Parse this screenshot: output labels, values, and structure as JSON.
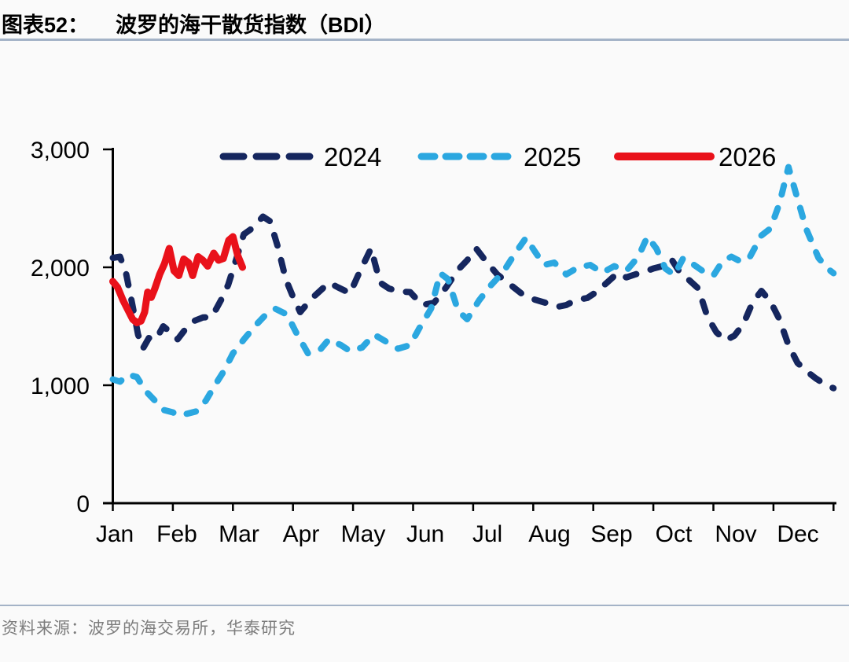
{
  "figure": {
    "label": "图表52：",
    "title": "波罗的海干散货指数（BDI）"
  },
  "source": {
    "text": "资料来源：波罗的海交易所，华泰研究"
  },
  "colors": {
    "navy": "#15265e",
    "light_blue": "#2ba7e0",
    "red": "#e9111a",
    "rule": "#a4b3c7",
    "axis": "#000000",
    "source_text": "#7d7d7d"
  },
  "chart_data": {
    "type": "line",
    "title": "波罗的海干散货指数（BDI）",
    "xlabel": "",
    "ylabel": "",
    "ylim": [
      0,
      3000
    ],
    "yticks": [
      0,
      1000,
      2000,
      3000
    ],
    "ytick_labels": [
      "0",
      "1,000",
      "2,000",
      "3,000"
    ],
    "months": [
      "Jan",
      "Feb",
      "Mar",
      "Apr",
      "May",
      "Jun",
      "Jul",
      "Aug",
      "Sep",
      "Oct",
      "Nov",
      "Dec"
    ],
    "grid": false,
    "legend_position": "top",
    "series": [
      {
        "name": "2024",
        "color": "#15265e",
        "width": 8,
        "dash": "14 19",
        "legend_dash": "26 16",
        "points": [
          [
            0,
            2080
          ],
          [
            0.12,
            2090
          ],
          [
            0.22,
            1950
          ],
          [
            0.32,
            1700
          ],
          [
            0.42,
            1430
          ],
          [
            0.5,
            1310
          ],
          [
            0.6,
            1400
          ],
          [
            0.72,
            1390
          ],
          [
            0.84,
            1500
          ],
          [
            0.96,
            1450
          ],
          [
            1.08,
            1390
          ],
          [
            1.2,
            1470
          ],
          [
            1.35,
            1545
          ],
          [
            1.5,
            1575
          ],
          [
            1.65,
            1580
          ],
          [
            1.8,
            1720
          ],
          [
            1.92,
            1850
          ],
          [
            2.05,
            2060
          ],
          [
            2.18,
            2280
          ],
          [
            2.32,
            2330
          ],
          [
            2.5,
            2430
          ],
          [
            2.62,
            2390
          ],
          [
            2.75,
            2170
          ],
          [
            2.88,
            1900
          ],
          [
            3,
            1750
          ],
          [
            3.12,
            1620
          ],
          [
            3.3,
            1730
          ],
          [
            3.45,
            1800
          ],
          [
            3.6,
            1870
          ],
          [
            3.75,
            1830
          ],
          [
            3.95,
            1780
          ],
          [
            4.1,
            1950
          ],
          [
            4.3,
            2160
          ],
          [
            4.45,
            1870
          ],
          [
            4.6,
            1820
          ],
          [
            4.78,
            1795
          ],
          [
            4.95,
            1790
          ],
          [
            5.15,
            1680
          ],
          [
            5.35,
            1700
          ],
          [
            5.55,
            1830
          ],
          [
            5.75,
            1980
          ],
          [
            5.9,
            2060
          ],
          [
            6.05,
            2160
          ],
          [
            6.2,
            2060
          ],
          [
            6.4,
            1940
          ],
          [
            6.6,
            1860
          ],
          [
            6.8,
            1780
          ],
          [
            7,
            1730
          ],
          [
            7.2,
            1700
          ],
          [
            7.4,
            1665
          ],
          [
            7.55,
            1680
          ],
          [
            7.7,
            1720
          ],
          [
            7.9,
            1740
          ],
          [
            8.05,
            1790
          ],
          [
            8.25,
            1880
          ],
          [
            8.4,
            1950
          ],
          [
            8.55,
            1915
          ],
          [
            8.7,
            1940
          ],
          [
            8.85,
            1960
          ],
          [
            9,
            1990
          ],
          [
            9.15,
            2010
          ],
          [
            9.3,
            2070
          ],
          [
            9.45,
            1950
          ],
          [
            9.6,
            1890
          ],
          [
            9.75,
            1820
          ],
          [
            9.9,
            1580
          ],
          [
            10.05,
            1450
          ],
          [
            10.2,
            1380
          ],
          [
            10.35,
            1420
          ],
          [
            10.5,
            1520
          ],
          [
            10.65,
            1700
          ],
          [
            10.8,
            1800
          ],
          [
            10.95,
            1710
          ],
          [
            11.1,
            1560
          ],
          [
            11.25,
            1340
          ],
          [
            11.4,
            1190
          ],
          [
            11.55,
            1120
          ],
          [
            11.7,
            1060
          ],
          [
            11.85,
            1010
          ],
          [
            12,
            975
          ]
        ]
      },
      {
        "name": "2025",
        "color": "#2ba7e0",
        "width": 8,
        "dash": "12 18",
        "legend_dash": "17 14",
        "points": [
          [
            0,
            1050
          ],
          [
            0.12,
            1030
          ],
          [
            0.25,
            1090
          ],
          [
            0.4,
            1070
          ],
          [
            0.55,
            950
          ],
          [
            0.7,
            870
          ],
          [
            0.85,
            790
          ],
          [
            1,
            770
          ],
          [
            1.1,
            745
          ],
          [
            1.25,
            760
          ],
          [
            1.4,
            780
          ],
          [
            1.55,
            870
          ],
          [
            1.7,
            1000
          ],
          [
            1.85,
            1120
          ],
          [
            2,
            1270
          ],
          [
            2.2,
            1400
          ],
          [
            2.4,
            1520
          ],
          [
            2.55,
            1600
          ],
          [
            2.7,
            1650
          ],
          [
            2.9,
            1600
          ],
          [
            3.05,
            1450
          ],
          [
            3.25,
            1270
          ],
          [
            3.45,
            1300
          ],
          [
            3.6,
            1390
          ],
          [
            3.8,
            1340
          ],
          [
            3.95,
            1290
          ],
          [
            4.15,
            1320
          ],
          [
            4.35,
            1430
          ],
          [
            4.55,
            1370
          ],
          [
            4.75,
            1310
          ],
          [
            4.95,
            1340
          ],
          [
            5.1,
            1480
          ],
          [
            5.3,
            1650
          ],
          [
            5.45,
            1950
          ],
          [
            5.58,
            1900
          ],
          [
            5.75,
            1630
          ],
          [
            5.9,
            1560
          ],
          [
            6.1,
            1720
          ],
          [
            6.3,
            1850
          ],
          [
            6.5,
            1960
          ],
          [
            6.7,
            2120
          ],
          [
            6.88,
            2250
          ],
          [
            7.02,
            2140
          ],
          [
            7.18,
            2020
          ],
          [
            7.35,
            2040
          ],
          [
            7.55,
            1940
          ],
          [
            7.75,
            2000
          ],
          [
            7.95,
            2020
          ],
          [
            8.15,
            1955
          ],
          [
            8.35,
            2010
          ],
          [
            8.55,
            1970
          ],
          [
            8.75,
            2090
          ],
          [
            8.9,
            2260
          ],
          [
            9.05,
            2160
          ],
          [
            9.2,
            1990
          ],
          [
            9.35,
            1935
          ],
          [
            9.5,
            2080
          ],
          [
            9.65,
            2030
          ],
          [
            9.82,
            1970
          ],
          [
            10,
            1930
          ],
          [
            10.15,
            2050
          ],
          [
            10.3,
            2090
          ],
          [
            10.45,
            2050
          ],
          [
            10.6,
            2080
          ],
          [
            10.8,
            2270
          ],
          [
            10.95,
            2330
          ],
          [
            11.1,
            2540
          ],
          [
            11.25,
            2850
          ],
          [
            11.4,
            2580
          ],
          [
            11.55,
            2320
          ],
          [
            11.75,
            2080
          ],
          [
            11.9,
            1990
          ],
          [
            12,
            1950
          ]
        ]
      },
      {
        "name": "2026",
        "color": "#e9111a",
        "width": 9,
        "dash": null,
        "legend_dash": null,
        "points": [
          [
            0,
            1880
          ],
          [
            0.08,
            1830
          ],
          [
            0.17,
            1720
          ],
          [
            0.25,
            1640
          ],
          [
            0.33,
            1560
          ],
          [
            0.4,
            1530
          ],
          [
            0.47,
            1545
          ],
          [
            0.53,
            1620
          ],
          [
            0.58,
            1790
          ],
          [
            0.64,
            1745
          ],
          [
            0.7,
            1820
          ],
          [
            0.78,
            1940
          ],
          [
            0.86,
            2030
          ],
          [
            0.94,
            2160
          ],
          [
            1.02,
            1970
          ],
          [
            1.1,
            1930
          ],
          [
            1.18,
            2070
          ],
          [
            1.26,
            2040
          ],
          [
            1.33,
            1930
          ],
          [
            1.42,
            2090
          ],
          [
            1.5,
            2060
          ],
          [
            1.58,
            2010
          ],
          [
            1.68,
            2120
          ],
          [
            1.76,
            2060
          ],
          [
            1.84,
            2075
          ],
          [
            1.93,
            2230
          ],
          [
            2,
            2260
          ],
          [
            2.08,
            2100
          ],
          [
            2.16,
            2000
          ]
        ]
      }
    ]
  }
}
